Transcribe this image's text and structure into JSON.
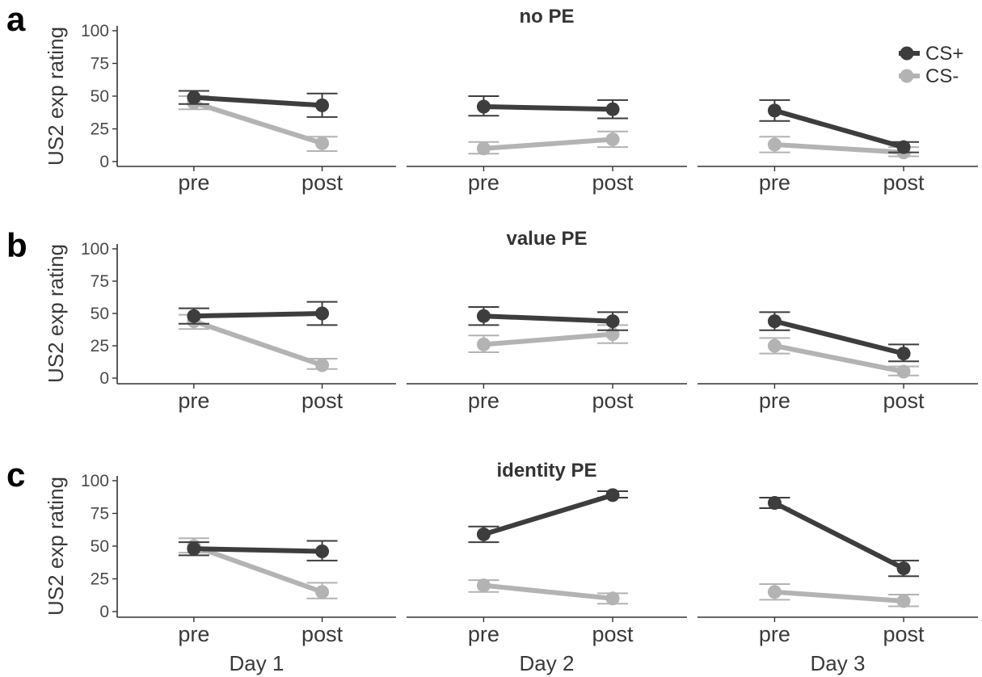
{
  "colors": {
    "cs_plus": "#3d3d3d",
    "cs_minus": "#b3b3b3"
  },
  "legend": {
    "placement": "top-right",
    "entries": [
      {
        "label": "CS+",
        "color": "#3d3d3d"
      },
      {
        "label": "CS-",
        "color": "#b3b3b3"
      }
    ]
  },
  "columns": [
    "Day 1",
    "Day 2",
    "Day 3"
  ],
  "chart_data": [
    {
      "type": "line",
      "panel_label": "a",
      "title": "no PE",
      "ylabel": "US2 exp rating",
      "categories": [
        "pre",
        "post"
      ],
      "ylim": [
        0,
        100
      ],
      "yticks": [
        0,
        25,
        50,
        75,
        100
      ],
      "grid": false,
      "facets": [
        {
          "day": "Day 1",
          "series": [
            {
              "name": "CS+",
              "values": [
                49,
                43
              ],
              "err_low": [
                44,
                34
              ],
              "err_high": [
                54,
                52
              ]
            },
            {
              "name": "CS-",
              "values": [
                45,
                14
              ],
              "err_low": [
                40,
                8
              ],
              "err_high": [
                50,
                19
              ]
            }
          ]
        },
        {
          "day": "Day 2",
          "series": [
            {
              "name": "CS+",
              "values": [
                42,
                40
              ],
              "err_low": [
                35,
                33
              ],
              "err_high": [
                50,
                47
              ]
            },
            {
              "name": "CS-",
              "values": [
                10,
                17
              ],
              "err_low": [
                6,
                11
              ],
              "err_high": [
                15,
                23
              ]
            }
          ]
        },
        {
          "day": "Day 3",
          "series": [
            {
              "name": "CS+",
              "values": [
                39,
                11
              ],
              "err_low": [
                31,
                7
              ],
              "err_high": [
                47,
                15
              ]
            },
            {
              "name": "CS-",
              "values": [
                13,
                7
              ],
              "err_low": [
                7,
                4
              ],
              "err_high": [
                19,
                11
              ]
            }
          ]
        }
      ]
    },
    {
      "type": "line",
      "panel_label": "b",
      "title": "value PE",
      "ylabel": "US2 exp rating",
      "categories": [
        "pre",
        "post"
      ],
      "ylim": [
        0,
        100
      ],
      "yticks": [
        0,
        25,
        50,
        75,
        100
      ],
      "grid": false,
      "facets": [
        {
          "day": "Day 1",
          "series": [
            {
              "name": "CS+",
              "values": [
                48,
                50
              ],
              "err_low": [
                42,
                41
              ],
              "err_high": [
                54,
                59
              ]
            },
            {
              "name": "CS-",
              "values": [
                44,
                10
              ],
              "err_low": [
                38,
                7
              ],
              "err_high": [
                49,
                15
              ]
            }
          ]
        },
        {
          "day": "Day 2",
          "series": [
            {
              "name": "CS+",
              "values": [
                48,
                44
              ],
              "err_low": [
                41,
                37
              ],
              "err_high": [
                55,
                51
              ]
            },
            {
              "name": "CS-",
              "values": [
                26,
                34
              ],
              "err_low": [
                20,
                27
              ],
              "err_high": [
                33,
                41
              ]
            }
          ]
        },
        {
          "day": "Day 3",
          "series": [
            {
              "name": "CS+",
              "values": [
                44,
                19
              ],
              "err_low": [
                37,
                13
              ],
              "err_high": [
                51,
                26
              ]
            },
            {
              "name": "CS-",
              "values": [
                25,
                5
              ],
              "err_low": [
                19,
                2
              ],
              "err_high": [
                31,
                9
              ]
            }
          ]
        }
      ]
    },
    {
      "type": "line",
      "panel_label": "c",
      "title": "identity PE",
      "ylabel": "US2 exp rating",
      "categories": [
        "pre",
        "post"
      ],
      "ylim": [
        0,
        100
      ],
      "yticks": [
        0,
        25,
        50,
        75,
        100
      ],
      "grid": false,
      "facets": [
        {
          "day": "Day 1",
          "series": [
            {
              "name": "CS+",
              "values": [
                48,
                46
              ],
              "err_low": [
                43,
                39
              ],
              "err_high": [
                53,
                54
              ]
            },
            {
              "name": "CS-",
              "values": [
                50,
                15
              ],
              "err_low": [
                45,
                10
              ],
              "err_high": [
                56,
                22
              ]
            }
          ]
        },
        {
          "day": "Day 2",
          "series": [
            {
              "name": "CS+",
              "values": [
                59,
                89
              ],
              "err_low": [
                53,
                87
              ],
              "err_high": [
                65,
                92
              ]
            },
            {
              "name": "CS-",
              "values": [
                20,
                10
              ],
              "err_low": [
                15,
                6
              ],
              "err_high": [
                24,
                14
              ]
            }
          ]
        },
        {
          "day": "Day 3",
          "series": [
            {
              "name": "CS+",
              "values": [
                83,
                33
              ],
              "err_low": [
                79,
                27
              ],
              "err_high": [
                87,
                39
              ]
            },
            {
              "name": "CS-",
              "values": [
                15,
                8
              ],
              "err_low": [
                9,
                4
              ],
              "err_high": [
                21,
                13
              ]
            }
          ]
        }
      ]
    }
  ]
}
